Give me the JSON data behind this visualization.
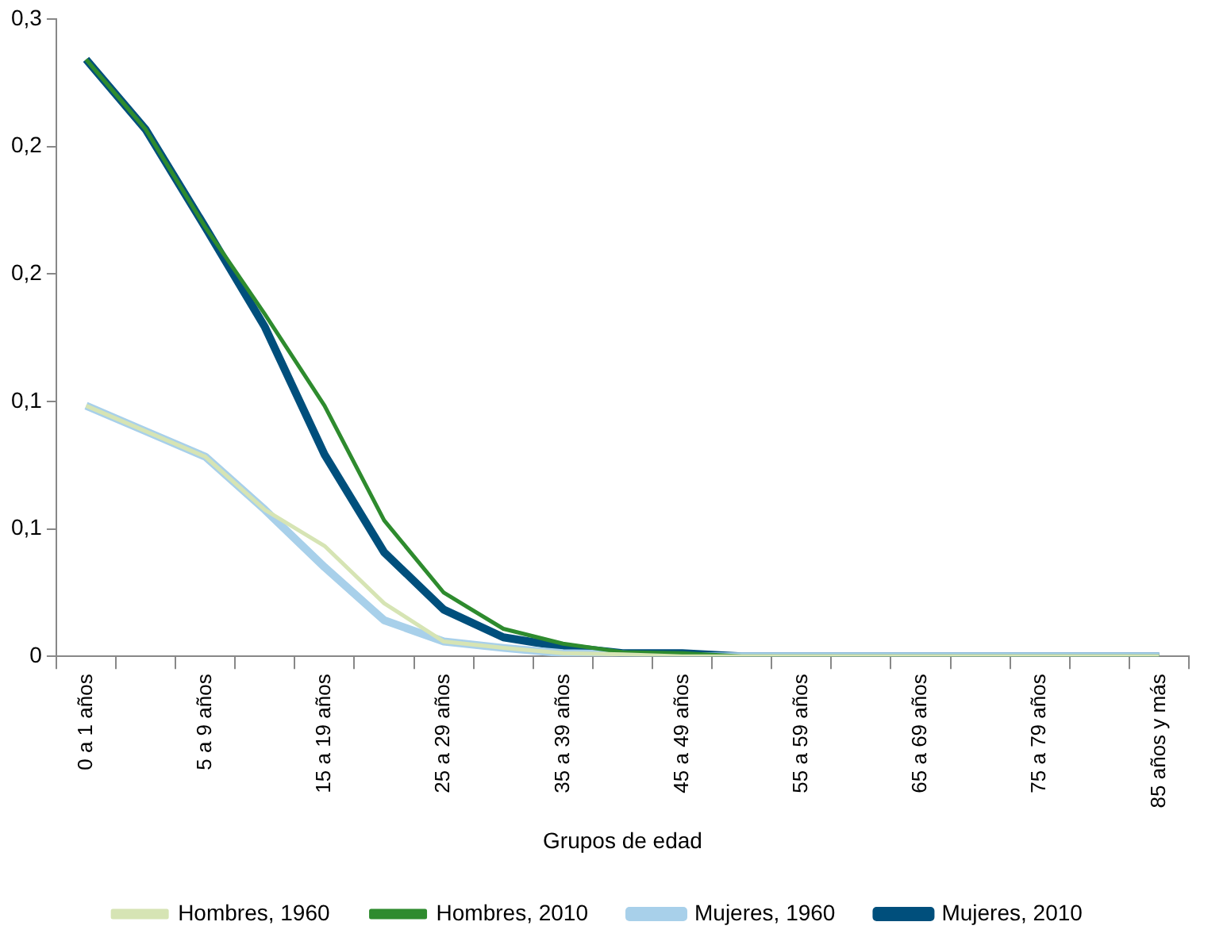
{
  "chart_data": {
    "type": "line",
    "xlabel": "Grupos de edad",
    "categories": [
      "0 a 1 años",
      null,
      "5 a 9 años",
      null,
      "15 a 19 años",
      null,
      "25 a 29 años",
      null,
      "35 a 39 años",
      null,
      "45 a 49 años",
      null,
      "55 a 59 años",
      null,
      "65 a 69 años",
      null,
      "75 a 79 años",
      null,
      "85 años y más"
    ],
    "series": [
      {
        "name": "Hombres, 1960",
        "color": "#d6e4b4",
        "values": [
          0.118,
          0.106,
          0.094,
          0.069,
          0.052,
          0.025,
          0.007,
          0.004,
          0.0015,
          0.001,
          0,
          0,
          0,
          0,
          0,
          0,
          0,
          0,
          0
        ]
      },
      {
        "name": "Hombres, 2010",
        "color": "#2e8b2e",
        "values": [
          0.281,
          0.248,
          0.202,
          0.161,
          0.118,
          0.064,
          0.03,
          0.013,
          0.006,
          0.002,
          0.0015,
          0,
          0,
          0,
          0,
          0,
          0,
          0,
          0
        ]
      },
      {
        "name": "Mujeres, 1960",
        "color": "#a8d0ea",
        "values": [
          0.118,
          0.106,
          0.094,
          0.069,
          0.042,
          0.017,
          0.007,
          0.004,
          0.0015,
          0.001,
          0,
          0,
          0,
          0,
          0,
          0,
          0,
          0,
          0
        ]
      },
      {
        "name": "Mujeres, 2010",
        "color": "#004f7c",
        "values": [
          0.281,
          0.248,
          0.202,
          0.155,
          0.095,
          0.049,
          0.022,
          0.009,
          0.0045,
          0.0015,
          0.0015,
          0,
          0,
          0,
          0,
          0,
          0,
          0,
          0
        ]
      }
    ],
    "ylim": [
      0,
      0.3
    ],
    "yticks": [
      0,
      {
        "value": 0.06,
        "label": "0,1"
      },
      {
        "value": 0.12,
        "label": "0,1"
      },
      {
        "value": 0.18,
        "label": "0,2"
      },
      {
        "value": 0.24,
        "label": "0,2"
      },
      {
        "value": 0.3,
        "label": "0,3"
      }
    ],
    "grid": false,
    "legend": "bottom",
    "marker": "none",
    "line_style": "solid"
  }
}
